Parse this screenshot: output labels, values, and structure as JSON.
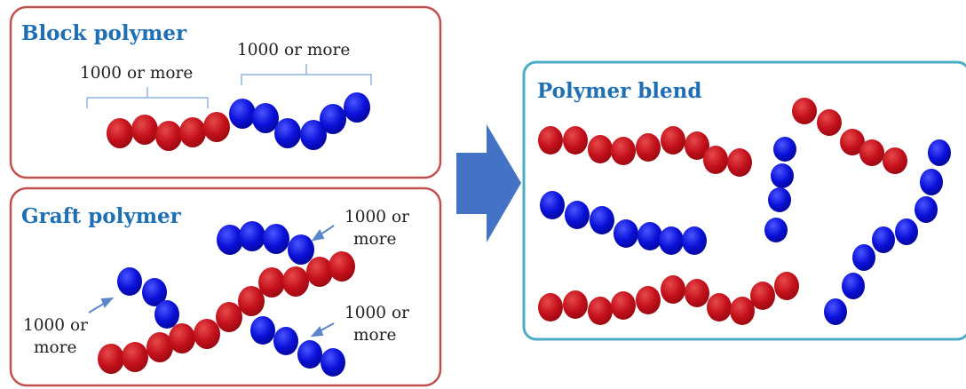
{
  "colors": {
    "red_bead": "#c4101c",
    "blue_bead": "#0a10d8",
    "panel_red_border": "#c0504d",
    "panel_blue_border": "#4bacc6",
    "arrow_fill": "#4472c4",
    "title_text": "#1f6fb5",
    "pointer": "#5b87c9"
  },
  "block_panel": {
    "title": "Block polymer",
    "label_red": "1000 or more",
    "label_blue": "1000 or more"
  },
  "graft_panel": {
    "title": "Graft polymer",
    "label_top_right": [
      "1000 or",
      "more"
    ],
    "label_left": [
      "1000 or",
      "more"
    ],
    "label_bottom_right": [
      "1000 or",
      "more"
    ]
  },
  "blend_panel": {
    "title": "Polymer blend"
  },
  "arrow": {
    "icon": "right-arrow-icon"
  }
}
